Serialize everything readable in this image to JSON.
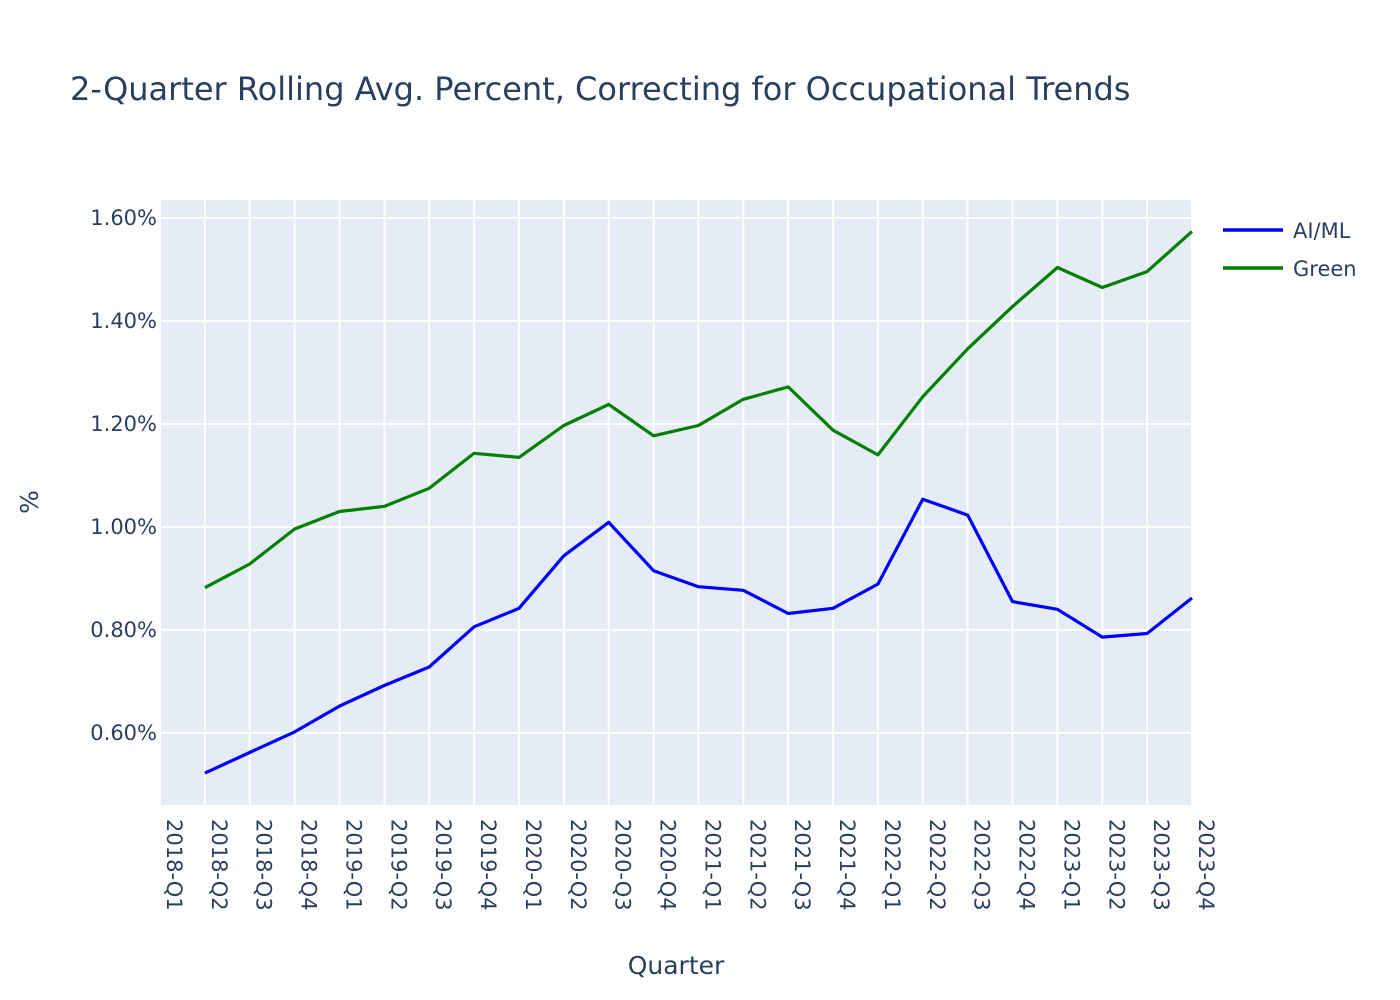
{
  "chart_data": {
    "type": "line",
    "title": "2-Quarter Rolling Avg. Percent, Correcting for Occupational Trends",
    "xlabel": "Quarter",
    "ylabel": "%",
    "categories": [
      "2018-Q1",
      "2018-Q2",
      "2018-Q3",
      "2018-Q4",
      "2019-Q1",
      "2019-Q2",
      "2019-Q3",
      "2019-Q4",
      "2020-Q1",
      "2020-Q2",
      "2020-Q3",
      "2020-Q4",
      "2021-Q1",
      "2021-Q2",
      "2021-Q3",
      "2021-Q4",
      "2022-Q1",
      "2022-Q2",
      "2022-Q3",
      "2022-Q4",
      "2023-Q1",
      "2023-Q2",
      "2023-Q3",
      "2023-Q4"
    ],
    "ylim": [
      0.46,
      1.635
    ],
    "yticks": [
      0.6,
      0.8,
      1.0,
      1.2,
      1.4,
      1.6
    ],
    "ytick_labels": [
      "0.60%",
      "0.80%",
      "1.00%",
      "1.20%",
      "1.40%",
      "1.60%"
    ],
    "grid": true,
    "legend_position": "top-right",
    "series": [
      {
        "name": "AI/ML",
        "color": "#0000ff",
        "values": [
          null,
          0.522,
          0.562,
          0.602,
          0.652,
          0.692,
          0.728,
          0.806,
          0.842,
          0.944,
          1.009,
          0.915,
          0.884,
          0.877,
          0.832,
          0.842,
          0.889,
          1.054,
          1.023,
          0.855,
          0.84,
          0.786,
          0.793,
          0.862
        ]
      },
      {
        "name": "Green",
        "color": "#008000",
        "values": [
          null,
          0.882,
          0.928,
          0.996,
          1.03,
          1.04,
          1.075,
          1.143,
          1.135,
          1.197,
          1.238,
          1.177,
          1.197,
          1.248,
          1.272,
          1.188,
          1.14,
          1.253,
          1.346,
          1.428,
          1.504,
          1.465,
          1.496,
          1.574
        ]
      }
    ]
  }
}
